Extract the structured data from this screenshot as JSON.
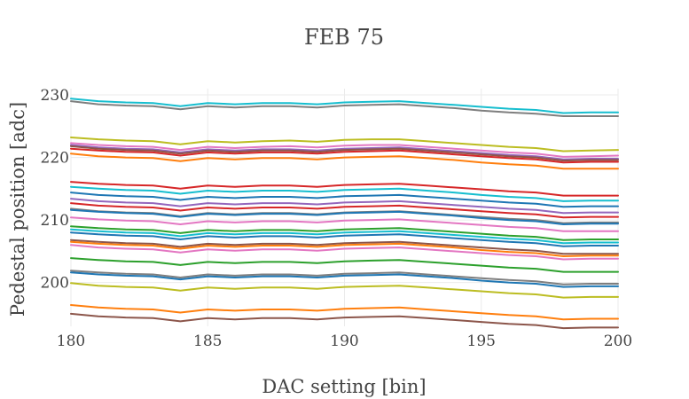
{
  "chart_data": {
    "type": "line",
    "title": "FEB 75",
    "xlabel": "DAC setting [bin]",
    "ylabel": "Pedestal position [adc]",
    "xlim": [
      180,
      200
    ],
    "ylim": [
      193.0,
      231.0
    ],
    "x_ticks": [
      180,
      185,
      190,
      195,
      200
    ],
    "y_ticks": [
      200,
      210,
      220,
      230
    ],
    "grid": true,
    "legend": "none",
    "x": [
      180,
      181,
      182,
      183,
      184,
      185,
      186,
      187,
      188,
      189,
      190,
      191,
      192,
      193,
      194,
      195,
      196,
      197,
      198,
      199,
      200
    ],
    "series": [
      {
        "color": "#17becf",
        "values": [
          229.4,
          229.0,
          228.8,
          228.7,
          228.2,
          228.7,
          228.5,
          228.7,
          228.7,
          228.5,
          228.8,
          228.9,
          229.0,
          228.7,
          228.4,
          228.1,
          227.8,
          227.6,
          227.1,
          227.2,
          227.2
        ]
      },
      {
        "color": "#7f7f7f",
        "values": [
          229.0,
          228.5,
          228.3,
          228.2,
          227.7,
          228.2,
          228.0,
          228.2,
          228.2,
          228.0,
          228.3,
          228.4,
          228.5,
          228.2,
          227.9,
          227.5,
          227.2,
          227.0,
          226.6,
          226.6,
          226.6
        ]
      },
      {
        "color": "#bcbd22",
        "values": [
          223.2,
          222.9,
          222.7,
          222.6,
          222.1,
          222.6,
          222.4,
          222.6,
          222.7,
          222.5,
          222.8,
          222.9,
          222.9,
          222.6,
          222.3,
          222.0,
          221.7,
          221.5,
          221.0,
          221.1,
          221.2
        ]
      },
      {
        "color": "#e377c2",
        "values": [
          222.3,
          222.0,
          221.8,
          221.7,
          221.2,
          221.7,
          221.5,
          221.7,
          221.8,
          221.6,
          221.9,
          222.0,
          222.0,
          221.7,
          221.4,
          221.1,
          220.8,
          220.6,
          220.1,
          220.2,
          220.3
        ]
      },
      {
        "color": "#9467bd",
        "values": [
          222.0,
          221.6,
          221.4,
          221.3,
          220.8,
          221.3,
          221.1,
          221.3,
          221.3,
          221.1,
          221.4,
          221.5,
          221.6,
          221.3,
          221.0,
          220.7,
          220.4,
          220.2,
          219.7,
          219.8,
          219.8
        ]
      },
      {
        "color": "#8c564b",
        "values": [
          221.8,
          221.4,
          221.2,
          221.1,
          220.6,
          221.1,
          220.9,
          221.1,
          221.1,
          220.9,
          221.2,
          221.3,
          221.4,
          221.1,
          220.8,
          220.5,
          220.2,
          220.0,
          219.5,
          219.6,
          219.6
        ]
      },
      {
        "color": "#d62728",
        "values": [
          221.4,
          221.1,
          220.9,
          220.8,
          220.3,
          220.8,
          220.6,
          220.8,
          220.8,
          220.6,
          220.9,
          221.0,
          221.1,
          220.8,
          220.5,
          220.2,
          219.9,
          219.7,
          219.2,
          219.3,
          219.3
        ]
      },
      {
        "color": "#ff7f0e",
        "values": [
          220.6,
          220.2,
          220.0,
          219.9,
          219.4,
          219.9,
          219.7,
          219.9,
          219.9,
          219.7,
          220.0,
          220.1,
          220.2,
          219.9,
          219.6,
          219.2,
          218.9,
          218.7,
          218.2,
          218.2,
          218.2
        ]
      },
      {
        "color": "#d62728",
        "values": [
          216.1,
          215.8,
          215.6,
          215.5,
          215.0,
          215.5,
          215.3,
          215.5,
          215.5,
          215.3,
          215.6,
          215.7,
          215.8,
          215.5,
          215.2,
          214.9,
          214.6,
          214.4,
          213.9,
          213.9,
          213.9
        ]
      },
      {
        "color": "#17becf",
        "values": [
          215.3,
          215.0,
          214.8,
          214.7,
          214.2,
          214.7,
          214.5,
          214.7,
          214.7,
          214.5,
          214.8,
          214.9,
          215.0,
          214.7,
          214.4,
          214.0,
          213.7,
          213.5,
          213.0,
          213.1,
          213.1
        ]
      },
      {
        "color": "#1f77b4",
        "values": [
          214.4,
          214.0,
          213.8,
          213.7,
          213.2,
          213.7,
          213.5,
          213.7,
          213.7,
          213.5,
          213.8,
          213.9,
          214.0,
          213.7,
          213.4,
          213.1,
          212.8,
          212.6,
          212.1,
          212.2,
          212.2
        ]
      },
      {
        "color": "#9467bd",
        "values": [
          213.4,
          213.0,
          212.8,
          212.7,
          212.2,
          212.7,
          212.5,
          212.7,
          212.7,
          212.5,
          212.8,
          212.9,
          213.0,
          212.7,
          212.4,
          212.1,
          211.8,
          211.6,
          211.1,
          211.2,
          211.2
        ]
      },
      {
        "color": "#d62728",
        "values": [
          212.7,
          212.3,
          212.1,
          212.0,
          211.5,
          212.0,
          211.8,
          212.0,
          212.0,
          211.8,
          212.1,
          212.2,
          212.3,
          212.0,
          211.7,
          211.4,
          211.1,
          210.9,
          210.4,
          210.5,
          210.5
        ]
      },
      {
        "color": "#7f7f7f",
        "values": [
          211.8,
          211.4,
          211.2,
          211.1,
          210.6,
          211.1,
          210.9,
          211.1,
          211.1,
          210.9,
          211.2,
          211.3,
          211.4,
          211.1,
          210.8,
          210.5,
          210.2,
          210.0,
          209.5,
          209.6,
          209.6
        ]
      },
      {
        "color": "#1f77b4",
        "values": [
          211.6,
          211.3,
          211.1,
          211.0,
          210.5,
          211.0,
          210.8,
          211.0,
          211.0,
          210.8,
          211.1,
          211.2,
          211.3,
          211.0,
          210.7,
          210.3,
          210.0,
          209.8,
          209.3,
          209.4,
          209.4
        ]
      },
      {
        "color": "#e377c2",
        "values": [
          210.4,
          210.1,
          209.9,
          209.8,
          209.3,
          209.8,
          209.6,
          209.8,
          209.8,
          209.6,
          209.9,
          210.0,
          210.1,
          209.8,
          209.5,
          209.2,
          208.9,
          208.7,
          208.2,
          208.2,
          208.2
        ]
      },
      {
        "color": "#2ca02c",
        "values": [
          209.0,
          208.7,
          208.5,
          208.4,
          207.9,
          208.4,
          208.2,
          208.4,
          208.4,
          208.2,
          208.5,
          208.6,
          208.7,
          208.4,
          208.1,
          207.8,
          207.5,
          207.3,
          206.8,
          206.9,
          206.9
        ]
      },
      {
        "color": "#17becf",
        "values": [
          208.5,
          208.2,
          208.0,
          207.9,
          207.4,
          207.9,
          207.7,
          207.9,
          207.9,
          207.7,
          208.0,
          208.1,
          208.2,
          207.9,
          207.6,
          207.3,
          207.0,
          206.8,
          206.3,
          206.4,
          206.4
        ]
      },
      {
        "color": "#1f77b4",
        "values": [
          208.0,
          207.7,
          207.5,
          207.4,
          206.9,
          207.4,
          207.2,
          207.4,
          207.4,
          207.2,
          207.5,
          207.6,
          207.7,
          207.4,
          207.1,
          206.8,
          206.5,
          206.3,
          205.8,
          205.9,
          205.9
        ]
      },
      {
        "color": "#8c564b",
        "values": [
          206.8,
          206.5,
          206.3,
          206.2,
          205.7,
          206.2,
          206.0,
          206.2,
          206.2,
          206.0,
          206.3,
          206.4,
          206.5,
          206.2,
          205.9,
          205.6,
          205.3,
          205.1,
          204.6,
          204.6,
          204.6
        ]
      },
      {
        "color": "#ff7f0e",
        "values": [
          206.5,
          206.2,
          206.0,
          205.9,
          205.4,
          205.9,
          205.7,
          205.9,
          205.9,
          205.7,
          206.0,
          206.1,
          206.2,
          205.9,
          205.6,
          205.2,
          204.9,
          204.7,
          204.2,
          204.3,
          204.3
        ]
      },
      {
        "color": "#e377c2",
        "values": [
          206.0,
          205.6,
          205.4,
          205.3,
          204.8,
          205.3,
          205.1,
          205.3,
          205.3,
          205.1,
          205.4,
          205.5,
          205.6,
          205.3,
          205.0,
          204.7,
          204.4,
          204.2,
          203.7,
          203.8,
          203.8
        ]
      },
      {
        "color": "#2ca02c",
        "values": [
          203.9,
          203.6,
          203.4,
          203.3,
          202.8,
          203.3,
          203.1,
          203.3,
          203.3,
          203.1,
          203.4,
          203.5,
          203.6,
          203.3,
          203.0,
          202.7,
          202.4,
          202.2,
          201.7,
          201.7,
          201.7
        ]
      },
      {
        "color": "#7f7f7f",
        "values": [
          201.9,
          201.6,
          201.4,
          201.3,
          200.8,
          201.3,
          201.1,
          201.3,
          201.3,
          201.1,
          201.4,
          201.5,
          201.6,
          201.3,
          201.0,
          200.7,
          200.4,
          200.2,
          199.7,
          199.8,
          199.8
        ]
      },
      {
        "color": "#1f77b4",
        "values": [
          201.6,
          201.3,
          201.1,
          201.0,
          200.5,
          201.0,
          200.8,
          201.0,
          201.0,
          200.8,
          201.1,
          201.2,
          201.3,
          201.0,
          200.7,
          200.3,
          200.0,
          199.8,
          199.3,
          199.4,
          199.4
        ]
      },
      {
        "color": "#bcbd22",
        "values": [
          199.9,
          199.5,
          199.3,
          199.2,
          198.7,
          199.2,
          199.0,
          199.2,
          199.2,
          199.0,
          199.3,
          199.4,
          199.5,
          199.2,
          198.9,
          198.6,
          198.3,
          198.1,
          197.6,
          197.7,
          197.7
        ]
      },
      {
        "color": "#ff7f0e",
        "values": [
          196.4,
          196.0,
          195.8,
          195.7,
          195.2,
          195.7,
          195.5,
          195.7,
          195.7,
          195.5,
          195.8,
          195.9,
          196.0,
          195.7,
          195.4,
          195.1,
          194.8,
          194.6,
          194.1,
          194.2,
          194.2
        ]
      },
      {
        "color": "#8c564b",
        "values": [
          195.0,
          194.6,
          194.4,
          194.3,
          193.8,
          194.3,
          194.1,
          194.3,
          194.3,
          194.1,
          194.4,
          194.5,
          194.6,
          194.3,
          194.0,
          193.7,
          193.4,
          193.2,
          192.7,
          192.8,
          192.8
        ]
      }
    ]
  }
}
